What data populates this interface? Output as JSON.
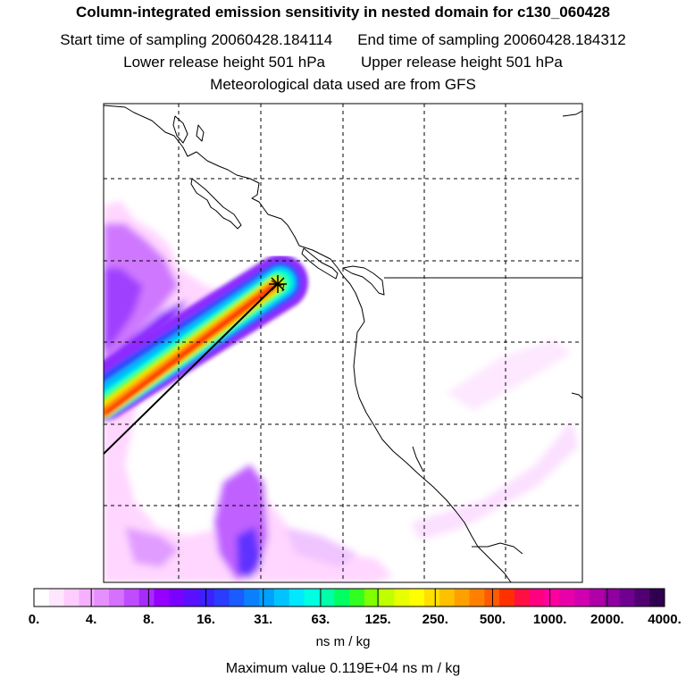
{
  "header": {
    "title": "Column-integrated emission sensitivity in nested domain for c130_060428",
    "start_time": "Start time of sampling 20060428.184114",
    "end_time": "End time of sampling 20060428.184312",
    "lower_release": "Lower release height  501 hPa",
    "upper_release": "Upper release height  501 hPa",
    "met_source": "Meteorological data used are from GFS"
  },
  "colorbar": {
    "ticks": [
      "0.",
      "4.",
      "8.",
      "16.",
      "31.",
      "63.",
      "125.",
      "250.",
      "500.",
      "1000.",
      "2000.",
      "4000."
    ],
    "colors": [
      "#ffffff",
      "#ffe6ff",
      "#ffccff",
      "#f5b0ff",
      "#e690ff",
      "#d670ff",
      "#c04cff",
      "#a82aff",
      "#9600ff",
      "#7a00ff",
      "#5a10ff",
      "#3c20ff",
      "#2a3cff",
      "#1a5cff",
      "#0a80ff",
      "#00a0ff",
      "#00c4ff",
      "#00e8ff",
      "#00ffe0",
      "#00ffa8",
      "#00ff60",
      "#30ff20",
      "#80ff00",
      "#c0ff00",
      "#e8ff00",
      "#ffff00",
      "#ffe000",
      "#ffc000",
      "#ffa000",
      "#ff8000",
      "#ff5a00",
      "#ff3000",
      "#ff1040",
      "#ff0080",
      "#ff00a0",
      "#e800a8",
      "#d000b0",
      "#b000a8",
      "#9000a0",
      "#700090",
      "#500070",
      "#300050"
    ],
    "units": "ns m / kg"
  },
  "footer": {
    "max_value": "Maximum value  0.119E+04 ns m / kg"
  }
}
